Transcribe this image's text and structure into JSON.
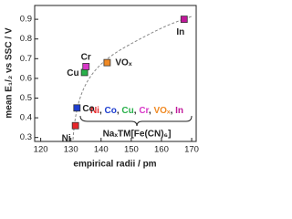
{
  "chart_data": {
    "type": "scatter",
    "x_label": "empirical radii / pm",
    "y_label": "mean E₁/₂ vs SSC / V",
    "xlim": [
      118,
      171.5
    ],
    "xticks": [
      120,
      130,
      140,
      150,
      160,
      170
    ],
    "ylim": [
      0.28,
      0.97
    ],
    "yticks": [
      0.3,
      0.4,
      0.5,
      0.6,
      0.7,
      0.8,
      0.9
    ],
    "series": [
      {
        "name": "Ni",
        "color": "#e8262a",
        "x": [
          131.5
        ],
        "values": [
          0.36
        ]
      },
      {
        "name": "Co",
        "color": "#1f3fd0",
        "x": [
          132
        ],
        "values": [
          0.45
        ]
      },
      {
        "name": "Cu",
        "color": "#28b04a",
        "x": [
          134.5
        ],
        "values": [
          0.63
        ]
      },
      {
        "name": "Cr",
        "color": "#d838c8",
        "x": [
          135
        ],
        "values": [
          0.66
        ]
      },
      {
        "name": "VOₓ",
        "color": "#f08a24",
        "x": [
          142
        ],
        "values": [
          0.68
        ]
      },
      {
        "name": "In",
        "color": "#c0189a",
        "x": [
          167.5
        ],
        "values": [
          0.9
        ]
      }
    ],
    "name_separator": ",",
    "compound": "NaₓTM[Fe(CN)₆]"
  }
}
